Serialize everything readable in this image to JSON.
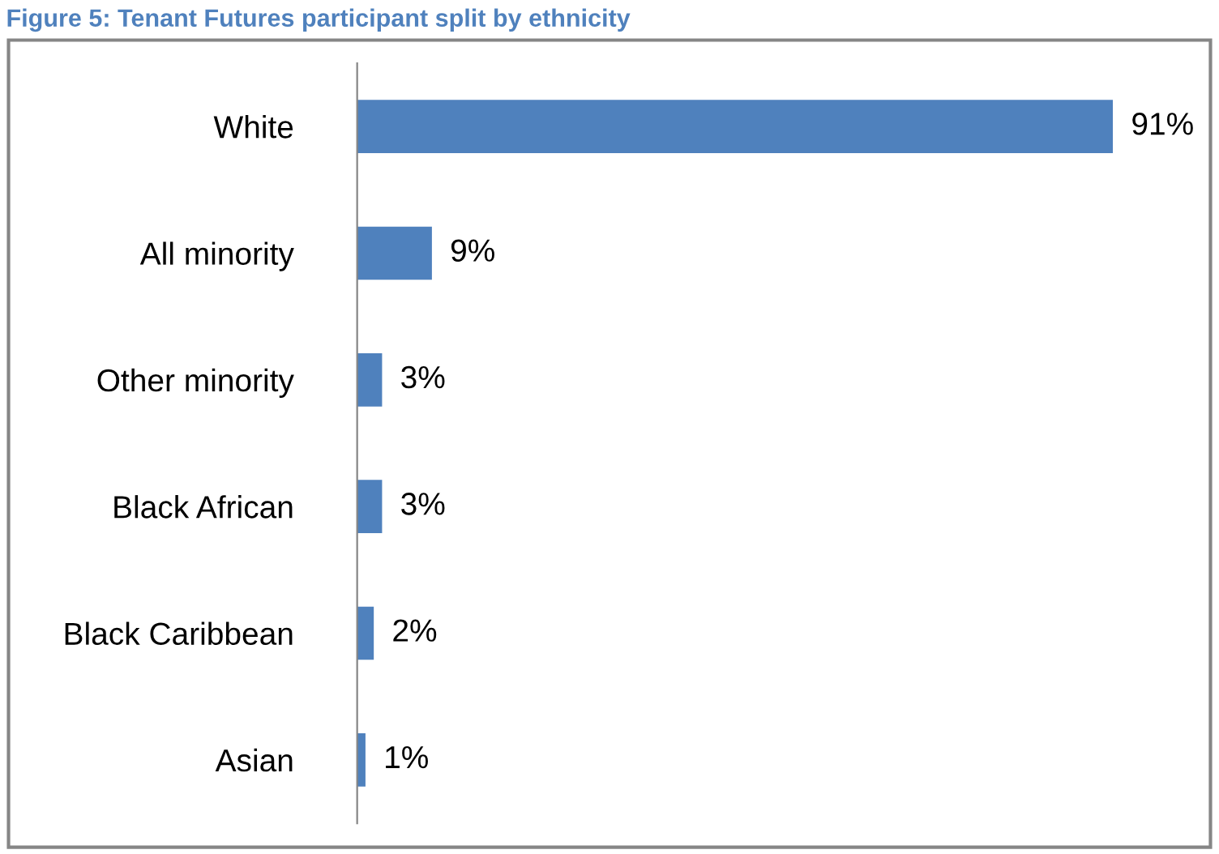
{
  "chart_data": {
    "type": "bar",
    "orientation": "horizontal",
    "title": "Figure 5: Tenant Futures participant split by ethnicity",
    "categories": [
      "White",
      "All minority",
      "Other minority",
      "Black African",
      "Black Caribbean",
      "Asian"
    ],
    "values": [
      91,
      9,
      3,
      3,
      2,
      1
    ],
    "value_labels": [
      "91%",
      "9%",
      "3%",
      "3%",
      "2%",
      "1%"
    ],
    "color": "#4f81bd",
    "grid": false,
    "legend": false
  }
}
